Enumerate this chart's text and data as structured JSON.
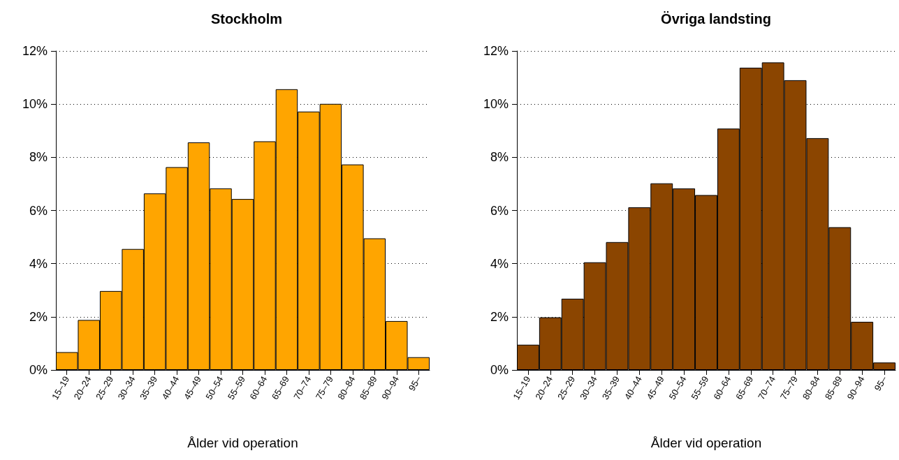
{
  "chart_data": [
    {
      "type": "bar",
      "title": "Stockholm",
      "xlabel": "Ålder vid operation",
      "categories": [
        "15–19",
        "20–24",
        "25–29",
        "30–34",
        "35–39",
        "40–44",
        "45–49",
        "50–54",
        "55–59",
        "60–64",
        "65–69",
        "70–74",
        "75–79",
        "80–84",
        "85–89",
        "90–94",
        "95–"
      ],
      "values": [
        0.67,
        1.88,
        2.97,
        4.55,
        6.64,
        7.63,
        8.56,
        6.83,
        6.43,
        8.6,
        10.56,
        9.72,
        10.01,
        7.73,
        4.95,
        1.84,
        0.48
      ],
      "color": "#ffa500",
      "ylim": [
        0,
        12
      ],
      "yticks": [
        {
          "value": 0,
          "label": "0%"
        },
        {
          "value": 2,
          "label": "2%"
        },
        {
          "value": 4,
          "label": "4%"
        },
        {
          "value": 6,
          "label": "6%"
        },
        {
          "value": 8,
          "label": "8%"
        },
        {
          "value": 10,
          "label": "10%"
        },
        {
          "value": 12,
          "label": "12%"
        }
      ],
      "grid": "y"
    },
    {
      "type": "bar",
      "title": "Övriga landsting",
      "xlabel": "Ålder vid operation",
      "categories": [
        "15–19",
        "20–24",
        "25–29",
        "30–34",
        "35–39",
        "40–44",
        "45–49",
        "50–54",
        "55–59",
        "60–64",
        "65–69",
        "70–74",
        "75–79",
        "80–84",
        "85–89",
        "90–94",
        "95–"
      ],
      "values": [
        0.95,
        1.98,
        2.68,
        4.05,
        4.81,
        6.12,
        7.02,
        6.83,
        6.58,
        9.08,
        11.37,
        11.57,
        10.9,
        8.72,
        5.37,
        1.81,
        0.28
      ],
      "color": "#8b4500",
      "ylim": [
        0,
        12
      ],
      "yticks": [
        {
          "value": 0,
          "label": "0%"
        },
        {
          "value": 2,
          "label": "2%"
        },
        {
          "value": 4,
          "label": "4%"
        },
        {
          "value": 6,
          "label": "6%"
        },
        {
          "value": 8,
          "label": "8%"
        },
        {
          "value": 10,
          "label": "10%"
        },
        {
          "value": 12,
          "label": "12%"
        }
      ],
      "grid": "y"
    }
  ]
}
